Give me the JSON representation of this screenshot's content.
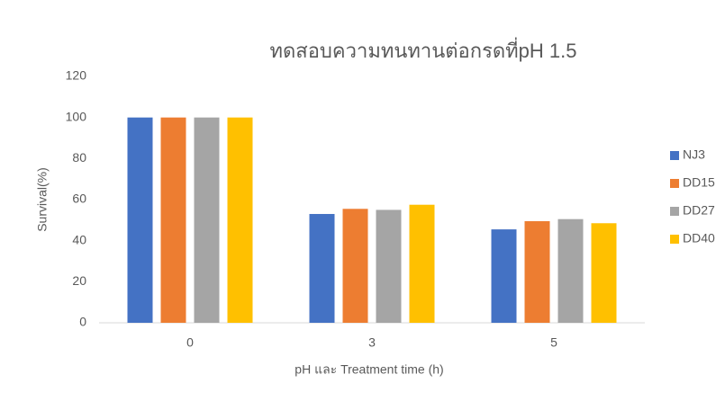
{
  "chart_data": {
    "type": "bar",
    "title": "ทดสอบความทนทานต่อกรดที่pH 1.5",
    "x_label": "pH และ Treatment time (h)",
    "y_label": "Survival(%)",
    "categories": [
      "0",
      "3",
      "5"
    ],
    "series": [
      {
        "name": "NJ3",
        "color": "#4472c4",
        "values": [
          100,
          53,
          45.5
        ]
      },
      {
        "name": "DD15",
        "color": "#ed7d31",
        "values": [
          100,
          55.5,
          49.5
        ]
      },
      {
        "name": "DD27",
        "color": "#a5a5a5",
        "values": [
          100,
          55,
          50.5
        ]
      },
      {
        "name": "DD40",
        "color": "#ffc000",
        "values": [
          100,
          57.5,
          48.5
        ]
      }
    ],
    "ylim": [
      0,
      120
    ],
    "yticks": [
      0,
      20,
      40,
      60,
      80,
      100,
      120
    ],
    "grid": false,
    "legend": "right"
  }
}
